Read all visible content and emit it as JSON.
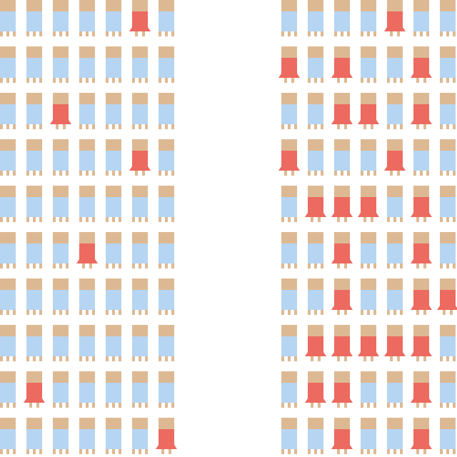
{
  "chart_data": {
    "type": "isotype",
    "colors": {
      "head": "#DDB993",
      "body_default": "#B6D5F2",
      "body_highlight": "#EC6A60",
      "background": "#FFFFFF"
    },
    "panels": [
      {
        "rows": [
          [
            0,
            0,
            0,
            0,
            0,
            1,
            0
          ],
          [
            0,
            0,
            0,
            0,
            0,
            0,
            0
          ],
          [
            0,
            0,
            1,
            0,
            0,
            0,
            0
          ],
          [
            0,
            0,
            0,
            0,
            0,
            1,
            0
          ],
          [
            0,
            0,
            0,
            0,
            0,
            0,
            0
          ],
          [
            0,
            0,
            0,
            1,
            0,
            0,
            0
          ],
          [
            0,
            0,
            0,
            0,
            0,
            0,
            0
          ],
          [
            0,
            0,
            0,
            0,
            0,
            0,
            0
          ],
          [
            0,
            1,
            0,
            0,
            0,
            0,
            0
          ],
          [
            0,
            0,
            0,
            0,
            0,
            0,
            1
          ]
        ]
      },
      {
        "rows": [
          [
            0,
            0,
            0,
            0,
            1,
            0,
            0
          ],
          [
            1,
            0,
            1,
            0,
            0,
            1,
            0
          ],
          [
            0,
            0,
            1,
            1,
            0,
            1,
            0
          ],
          [
            1,
            0,
            0,
            0,
            1,
            0,
            0
          ],
          [
            0,
            1,
            1,
            1,
            0,
            1,
            0
          ],
          [
            0,
            0,
            1,
            0,
            0,
            1,
            0
          ],
          [
            0,
            0,
            1,
            0,
            0,
            1,
            1
          ],
          [
            0,
            1,
            1,
            1,
            1,
            1,
            0
          ],
          [
            0,
            1,
            1,
            0,
            0,
            1,
            0
          ],
          [
            0,
            0,
            1,
            0,
            0,
            1,
            0
          ]
        ]
      }
    ]
  }
}
